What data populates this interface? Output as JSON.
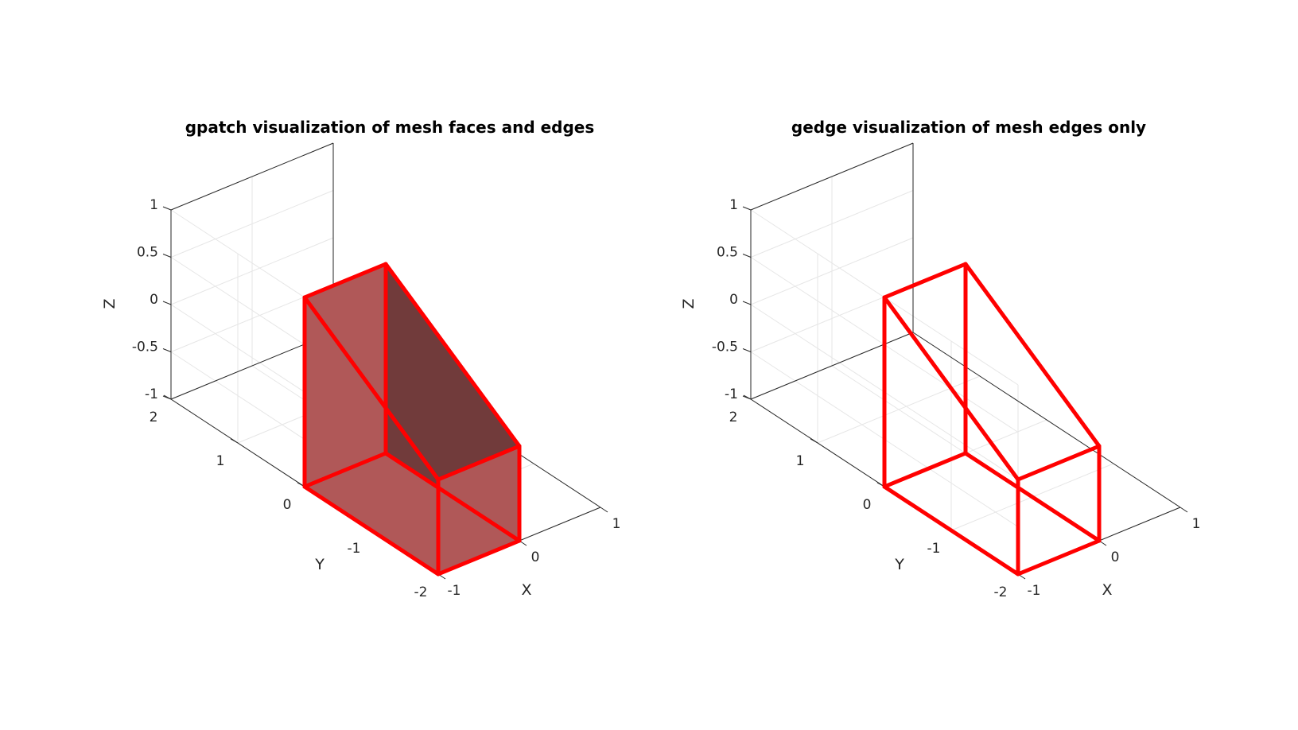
{
  "chart_data": [
    {
      "type": "3d-mesh",
      "title": "gpatch visualization of mesh faces and edges",
      "xlabel": "X",
      "ylabel": "Y",
      "zlabel": "Z",
      "xlim": [
        -1,
        1
      ],
      "ylim": [
        -2,
        2
      ],
      "zlim": [
        -1,
        1
      ],
      "xticks": [
        "-1",
        "0",
        "1"
      ],
      "yticks": [
        "-2",
        "-1",
        "0",
        "1",
        "2"
      ],
      "zticks": [
        "-1",
        "-0.5",
        "0",
        "0.5",
        "1"
      ],
      "grid": true,
      "face_color": "#b05858",
      "edge_color": "#ff0000",
      "show_faces": true,
      "vertices": [
        [
          -1,
          -2,
          -1
        ],
        [
          0,
          -2,
          -1
        ],
        [
          -1,
          0,
          -1
        ],
        [
          0,
          0,
          -1
        ],
        [
          -1,
          -2,
          0
        ],
        [
          0,
          -2,
          0
        ],
        [
          -1,
          0,
          1
        ],
        [
          0,
          0,
          1
        ]
      ],
      "faces": [
        [
          0,
          4,
          6,
          2
        ],
        [
          4,
          5,
          7,
          6
        ],
        [
          0,
          1,
          5,
          4
        ],
        [
          1,
          3,
          7,
          5
        ],
        [
          2,
          6,
          7,
          3
        ],
        [
          0,
          2,
          3,
          1
        ]
      ]
    },
    {
      "type": "3d-mesh",
      "title": "gedge visualization of mesh edges only",
      "xlabel": "X",
      "ylabel": "Y",
      "zlabel": "Z",
      "xlim": [
        -1,
        1
      ],
      "ylim": [
        -2,
        2
      ],
      "zlim": [
        -1,
        1
      ],
      "xticks": [
        "-1",
        "0",
        "1"
      ],
      "yticks": [
        "-2",
        "-1",
        "0",
        "1",
        "2"
      ],
      "zticks": [
        "-1",
        "-0.5",
        "0",
        "0.5",
        "1"
      ],
      "grid": true,
      "face_color": "",
      "edge_color": "#ff0000",
      "show_faces": false,
      "vertices": [
        [
          -1,
          -2,
          -1
        ],
        [
          0,
          -2,
          -1
        ],
        [
          -1,
          0,
          -1
        ],
        [
          0,
          0,
          -1
        ],
        [
          -1,
          -2,
          0
        ],
        [
          0,
          -2,
          0
        ],
        [
          -1,
          0,
          1
        ],
        [
          0,
          0,
          1
        ]
      ],
      "faces": [
        [
          0,
          4,
          6,
          2
        ],
        [
          4,
          5,
          7,
          6
        ],
        [
          0,
          1,
          5,
          4
        ],
        [
          1,
          3,
          7,
          5
        ],
        [
          2,
          6,
          7,
          3
        ],
        [
          0,
          2,
          3,
          1
        ]
      ]
    }
  ]
}
